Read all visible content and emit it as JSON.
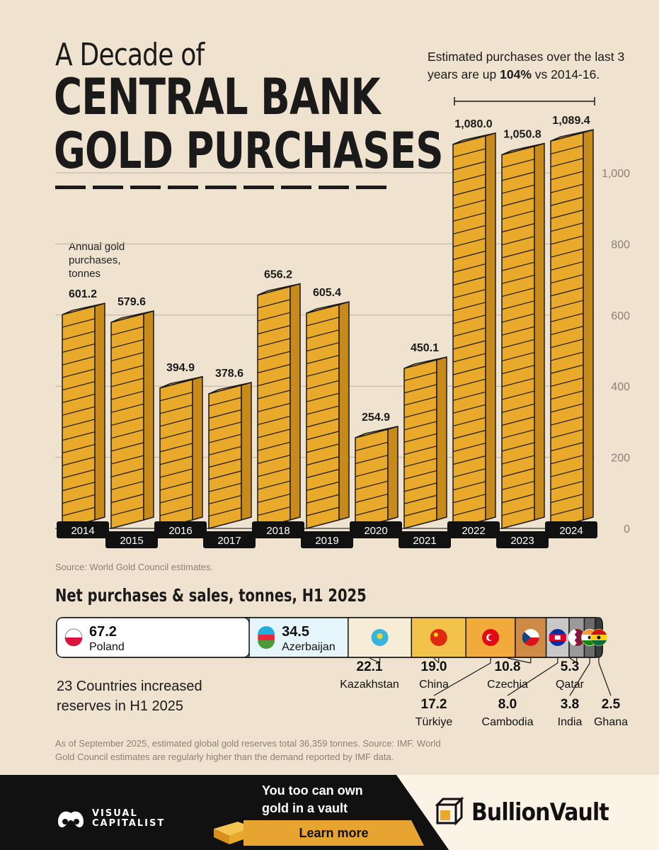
{
  "title": {
    "line1": "A Decade of",
    "line2": "CENTRAL BANK",
    "line3": "GOLD PURCHASES"
  },
  "note": {
    "prefix": "Estimated purchases over the last 3 years are up ",
    "highlight": "104%",
    "suffix": " vs 2014-16."
  },
  "chart_ylabel": "Annual gold purchases, tonnes",
  "chart_data": {
    "type": "bar",
    "categories": [
      "2014",
      "2015",
      "2016",
      "2017",
      "2018",
      "2019",
      "2020",
      "2021",
      "2022",
      "2023",
      "2024"
    ],
    "values": [
      601.2,
      579.6,
      394.9,
      378.6,
      656.2,
      605.4,
      254.9,
      450.1,
      1080.0,
      1050.8,
      1089.4
    ],
    "value_labels": [
      "601.2",
      "579.6",
      "394.9",
      "378.6",
      "656.2",
      "605.4",
      "254.9",
      "450.1",
      "1,080.0",
      "1,050.8",
      "1,089.4"
    ],
    "ylabel": "Annual gold purchases, tonnes",
    "yticks": [
      0,
      200,
      400,
      600,
      800,
      1000
    ],
    "ytick_labels": [
      "0",
      "200",
      "400",
      "600",
      "800",
      "1,000"
    ],
    "ylim": [
      0,
      1200
    ],
    "grid": true,
    "bar_color": "#e9a92b"
  },
  "source1": "Source: World Gold Council estimates.",
  "subhead": "Net purchases & sales, tonnes, H1 2025",
  "net_purchases": [
    {
      "country": "Poland",
      "value": "67.2",
      "tonnes": 67.2,
      "flag": "poland-flag",
      "color": "#ffffff"
    },
    {
      "country": "Azerbaijan",
      "value": "34.5",
      "tonnes": 34.5,
      "flag": "azerbaijan-flag",
      "color": "#e6f4fb"
    },
    {
      "country": "Kazakhstan",
      "value": "22.1",
      "tonnes": 22.1,
      "flag": "kazakhstan-flag",
      "color": "#f7ecd6"
    },
    {
      "country": "China",
      "value": "19.0",
      "tonnes": 19.0,
      "flag": "china-flag",
      "color": "#f3c24a"
    },
    {
      "country": "Türkiye",
      "value": "17.2",
      "tonnes": 17.2,
      "flag": "turkiye-flag",
      "color": "#f2ab3a"
    },
    {
      "country": "Czechia",
      "value": "10.8",
      "tonnes": 10.8,
      "flag": "czechia-flag",
      "color": "#cf8b46"
    },
    {
      "country": "Cambodia",
      "value": "8.0",
      "tonnes": 8.0,
      "flag": "cambodia-flag",
      "color": "#c8c8c8"
    },
    {
      "country": "Qatar",
      "value": "5.3",
      "tonnes": 5.3,
      "flag": "qatar-flag",
      "color": "#9a9a9a"
    },
    {
      "country": "India",
      "value": "3.8",
      "tonnes": 3.8,
      "flag": "india-flag",
      "color": "#6b6b6b"
    },
    {
      "country": "Ghana",
      "value": "2.5",
      "tonnes": 2.5,
      "flag": "ghana-flag",
      "color": "#3a3a3a"
    }
  ],
  "count_text": "23 Countries increased reserves in H1 2025",
  "footer_note": "As of September 2025, estimated global gold reserves total 36,359 tonnes. Source: IMF. World Gold Council estimates are regularly higher than the demand reported by IMF data.",
  "footer": {
    "brand_line1": "VISUAL",
    "brand_line2": "CAPITALIST",
    "ad_text": "You too can own gold in a vault",
    "cta": "Learn more",
    "sponsor": "BullionVault"
  }
}
